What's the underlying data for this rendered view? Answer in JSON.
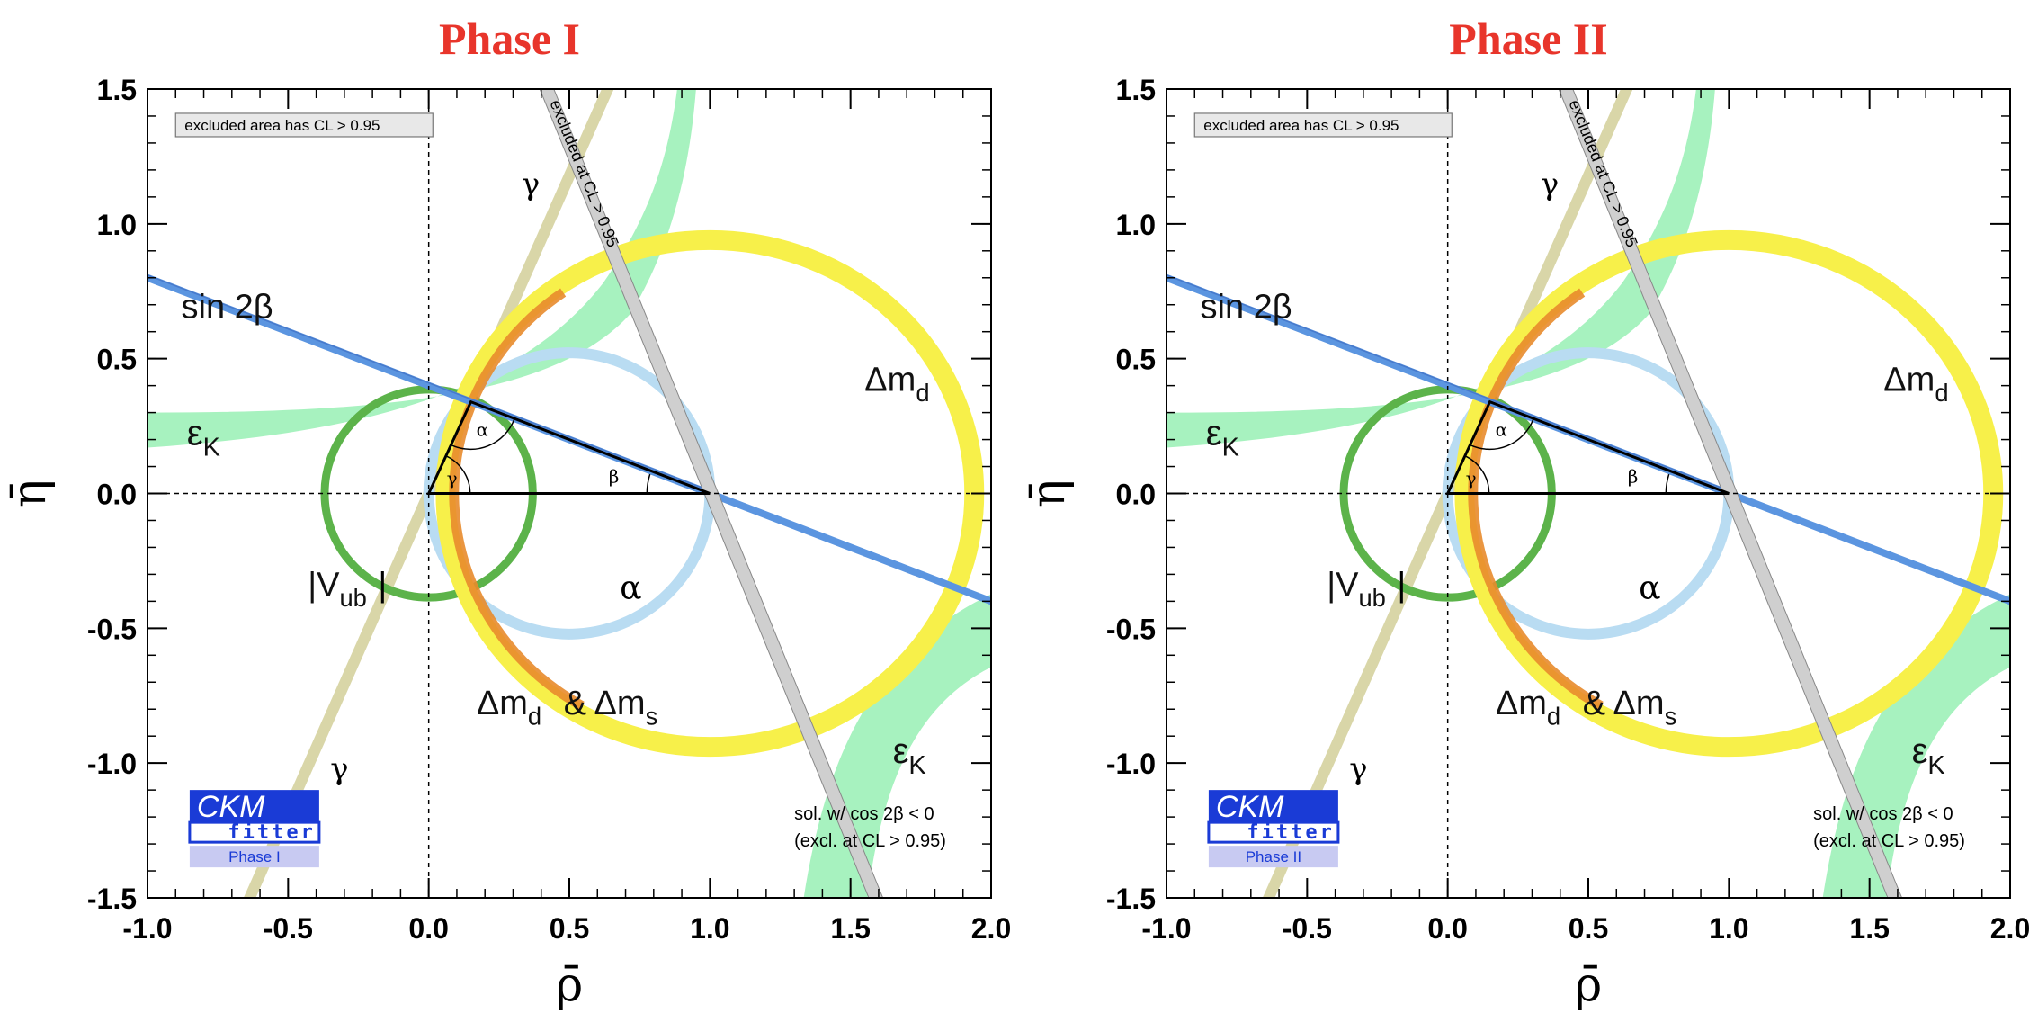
{
  "chart_data": [
    {
      "type": "ckm-unitarity-triangle-constraints",
      "title": "Phase I",
      "xlabel": "ρ̄",
      "ylabel": "η̄",
      "xlim": [
        -1.0,
        2.0
      ],
      "ylim": [
        -1.5,
        1.5
      ],
      "xticks": [
        "-1.0",
        "-0.5",
        "0.0",
        "0.5",
        "1.0",
        "1.5",
        "2.0"
      ],
      "yticks": [
        "1.5",
        "1.0",
        "0.5",
        "0.0",
        "-0.5",
        "-1.0",
        "-1.5"
      ],
      "apex": [
        0.15,
        0.34
      ],
      "angle_labels": [
        "α",
        "β",
        "γ"
      ],
      "note_top": "excluded area has CL > 0.95",
      "note_bottom": [
        "sol. w/ cos 2β < 0",
        "(excl. at CL > 0.95)"
      ],
      "excluded_label": "excluded at CL > 0.95",
      "logo": {
        "line1": "CKM",
        "line2": "fitter",
        "phase": "Phase I"
      },
      "constraints": [
        {
          "name": "Δm_d",
          "color": "#f7f04a",
          "center": [
            1.0,
            0.0
          ],
          "radius": 0.94
        },
        {
          "name": "Δm_d & Δm_s",
          "color": "#e88b2c",
          "center": [
            1.0,
            0.0
          ],
          "radius": 0.91
        },
        {
          "name": "|V_ub|",
          "color": "#5cb34a",
          "center": [
            0.0,
            0.0
          ],
          "radius": 0.37
        },
        {
          "name": "α",
          "color": "#b9dcf2",
          "center": [
            0.5,
            0.0
          ],
          "radius": 0.5
        },
        {
          "name": "sin 2β",
          "color": "#5b95e0",
          "slope": -0.4
        },
        {
          "name": "γ",
          "color": "#d9d6a8",
          "angle_deg": 67
        },
        {
          "name": "ε_K",
          "color": "#a7f2bf"
        }
      ]
    },
    {
      "type": "ckm-unitarity-triangle-constraints",
      "title": "Phase II",
      "xlabel": "ρ̄",
      "ylabel": "η̄",
      "xlim": [
        -1.0,
        2.0
      ],
      "ylim": [
        -1.5,
        1.5
      ],
      "xticks": [
        "-1.0",
        "-0.5",
        "0.0",
        "0.5",
        "1.0",
        "1.5",
        "2.0"
      ],
      "yticks": [
        "1.5",
        "1.0",
        "0.5",
        "0.0",
        "-0.5",
        "-1.0",
        "-1.5"
      ],
      "apex": [
        0.15,
        0.34
      ],
      "angle_labels": [
        "α",
        "β",
        "γ"
      ],
      "note_top": "excluded area has CL > 0.95",
      "note_bottom": [
        "sol. w/ cos 2β < 0",
        "(excl. at CL > 0.95)"
      ],
      "excluded_label": "excluded at CL > 0.95",
      "logo": {
        "line1": "CKM",
        "line2": "fitter",
        "phase": "Phase II"
      },
      "constraints": [
        {
          "name": "Δm_d",
          "color": "#f7f04a",
          "center": [
            1.0,
            0.0
          ],
          "radius": 0.94
        },
        {
          "name": "Δm_d & Δm_s",
          "color": "#e88b2c",
          "center": [
            1.0,
            0.0
          ],
          "radius": 0.91
        },
        {
          "name": "|V_ub|",
          "color": "#5cb34a",
          "center": [
            0.0,
            0.0
          ],
          "radius": 0.37
        },
        {
          "name": "α",
          "color": "#b9dcf2",
          "center": [
            0.5,
            0.0
          ],
          "radius": 0.5
        },
        {
          "name": "sin 2β",
          "color": "#5b95e0",
          "slope": -0.4
        },
        {
          "name": "γ",
          "color": "#d9d6a8",
          "angle_deg": 67
        },
        {
          "name": "ε_K",
          "color": "#a7f2bf"
        }
      ]
    }
  ]
}
